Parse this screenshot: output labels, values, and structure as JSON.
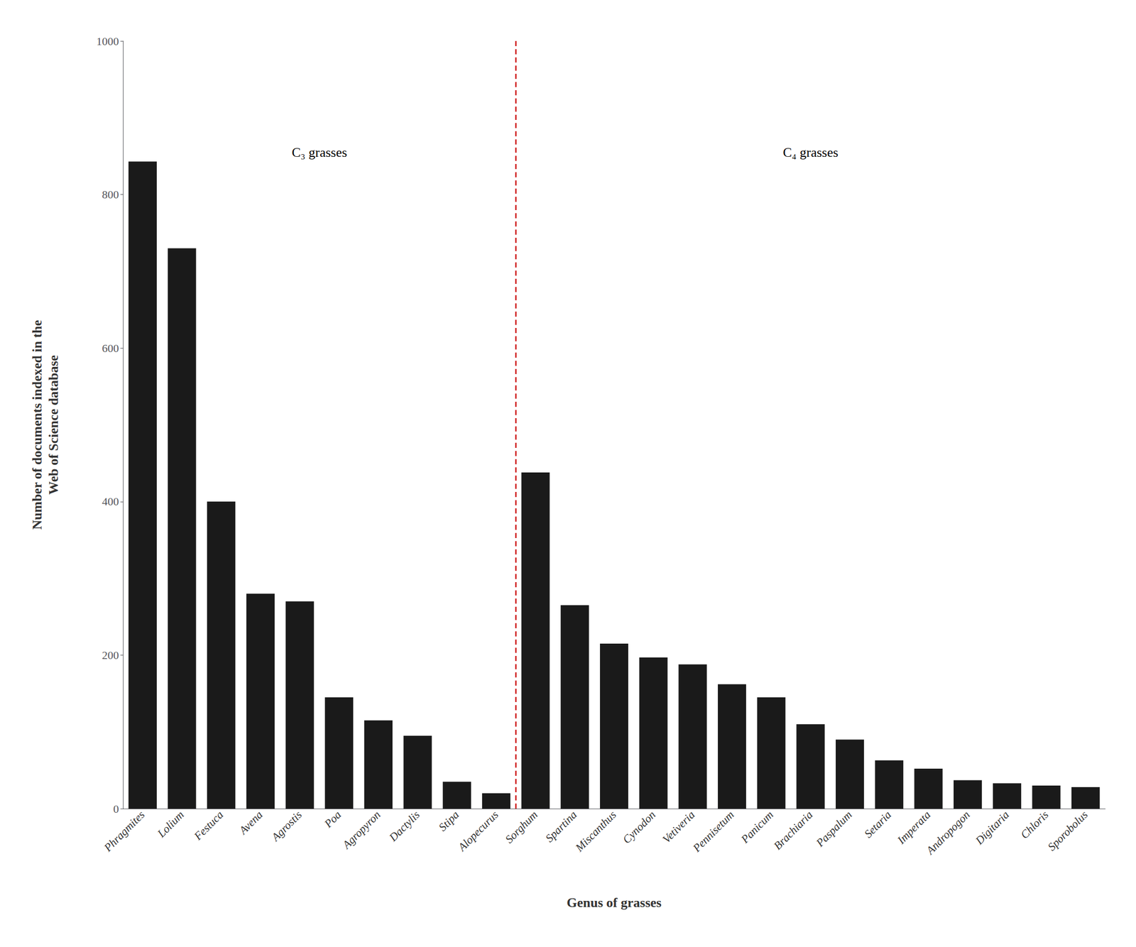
{
  "chart_data": {
    "type": "bar",
    "categories": [
      "Phragmites",
      "Lolium",
      "Festuca",
      "Avena",
      "Agrostis",
      "Poa",
      "Agropyron",
      "Dactylis",
      "Stipa",
      "Alopecurus",
      "Sorghum",
      "Spartina",
      "Miscanthus",
      "Cynodon",
      "Vetiveria",
      "Pennisetum",
      "Panicum",
      "Brachiaria",
      "Paspalum",
      "Setaria",
      "Imperata",
      "Andropogon",
      "Digitaria",
      "Chloris",
      "Sporobolus"
    ],
    "values": [
      843,
      730,
      400,
      280,
      270,
      145,
      115,
      95,
      35,
      20,
      438,
      265,
      215,
      197,
      188,
      162,
      145,
      110,
      90,
      63,
      52,
      37,
      33,
      30,
      28
    ],
    "color": "#1a1a1a",
    "xlabel": "Genus of grasses",
    "ylabel": "Number of documents indexed in the\nWeb of Science database",
    "ylim": [
      0,
      1000
    ],
    "yticks": [
      0,
      200,
      400,
      600,
      800,
      1000
    ],
    "grid": false,
    "data_labels": false,
    "annotations": [
      {
        "text": "C₃ grasses",
        "from": "Phragmites",
        "to": "Alopecurus"
      },
      {
        "text": "C₄ grasses",
        "from": "Sorghum",
        "to": "Sporobolus"
      }
    ],
    "divider": {
      "color": "#cc0000",
      "line_style": "dashed"
    }
  }
}
